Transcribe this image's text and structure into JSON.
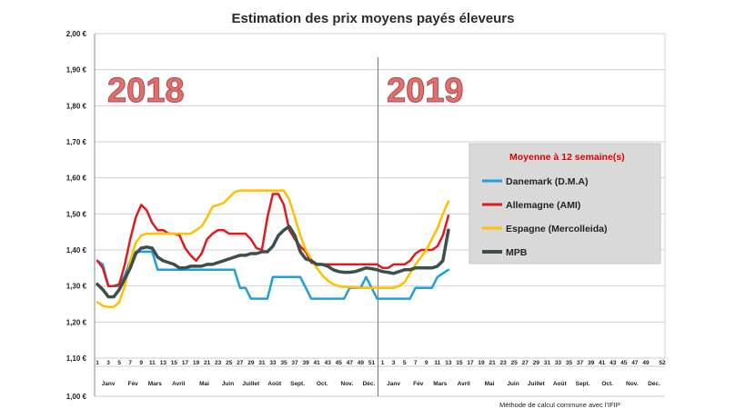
{
  "chart_data": {
    "type": "line",
    "title": "Estimation des prix moyens payés éleveurs",
    "y_tick_labels": [
      "2,00 €",
      "1,90 €",
      "1,80 €",
      "1,70 €",
      "1,60 €",
      "1,50 €",
      "1,40 €",
      "1,30 €",
      "1,20 €",
      "1,10 €",
      "1,00 €"
    ],
    "ylim": [
      1.0,
      2.0
    ],
    "grid": true,
    "week_ticks_2018": [
      "1",
      "3",
      "5",
      "7",
      "9",
      "11",
      "13",
      "15",
      "17",
      "19",
      "21",
      "23",
      "25",
      "27",
      "29",
      "31",
      "33",
      "35",
      "37",
      "39",
      "41",
      "43",
      "45",
      "47",
      "49",
      "51"
    ],
    "week_ticks_2019": [
      "1",
      "3",
      "5",
      "7",
      "9",
      "11",
      "13",
      "15",
      "17",
      "19",
      "21",
      "23",
      "25",
      "27",
      "29",
      "31",
      "33",
      "35",
      "37",
      "39",
      "41",
      "43",
      "45",
      "47",
      "49",
      "52"
    ],
    "months": [
      "Janv",
      "Fév",
      "Mars",
      "Avril",
      "Mai",
      "Juin",
      "Juillet",
      "Août",
      "Sept.",
      "Oct.",
      "Nov.",
      "Déc.",
      "Janv",
      "Fév",
      "Mars",
      "Avril",
      "Mai",
      "Juin",
      "Juillet",
      "Août",
      "Sept.",
      "Oct.",
      "Nov.",
      "Déc."
    ],
    "year_labels": [
      "2018",
      "2019"
    ],
    "legend": {
      "title": "Moyenne à  12 semaine(s)",
      "entries": [
        {
          "name": "Danemark (D.M.A)",
          "color": "#1f9fdc"
        },
        {
          "name": "Allemagne (AMI)",
          "color": "#e31a1c"
        },
        {
          "name": "Espagne (Mercolleida)",
          "color": "#ffc000"
        },
        {
          "name": "MPB",
          "color": "#3d4f4a"
        }
      ]
    },
    "note": "Méthode de calcul commune avec l'IFIP",
    "series": [
      {
        "name": "Danemark (D.M.A)",
        "color": "#1f9fdc",
        "x": [
          1,
          2,
          3,
          4,
          5,
          6,
          7,
          8,
          9,
          10,
          11,
          12,
          13,
          14,
          15,
          16,
          17,
          18,
          19,
          20,
          21,
          22,
          23,
          24,
          25,
          26,
          27,
          28,
          29,
          30,
          31,
          32,
          33,
          34,
          35,
          36,
          37,
          38,
          39,
          40,
          41,
          42,
          43,
          44,
          45,
          46,
          47,
          48,
          49,
          50,
          51,
          52,
          53,
          54,
          55,
          56,
          57,
          58,
          59,
          60,
          61,
          62,
          63,
          64,
          65
        ],
        "y": [
          1.37,
          1.36,
          1.3,
          1.3,
          1.3,
          1.33,
          1.37,
          1.395,
          1.395,
          1.395,
          1.395,
          1.345,
          1.345,
          1.345,
          1.345,
          1.345,
          1.345,
          1.345,
          1.345,
          1.345,
          1.345,
          1.345,
          1.345,
          1.345,
          1.345,
          1.345,
          1.295,
          1.295,
          1.265,
          1.265,
          1.265,
          1.265,
          1.325,
          1.325,
          1.325,
          1.325,
          1.325,
          1.325,
          1.295,
          1.265,
          1.265,
          1.265,
          1.265,
          1.265,
          1.265,
          1.265,
          1.295,
          1.295,
          1.295,
          1.325,
          1.295,
          1.265,
          1.265,
          1.265,
          1.265,
          1.265,
          1.265,
          1.265,
          1.295,
          1.295,
          1.295,
          1.295,
          1.325,
          1.335,
          1.345
        ]
      },
      {
        "name": "Allemagne (AMI)",
        "color": "#e31a1c",
        "x": [
          1,
          2,
          3,
          4,
          5,
          6,
          7,
          8,
          9,
          10,
          11,
          12,
          13,
          14,
          15,
          16,
          17,
          18,
          19,
          20,
          21,
          22,
          23,
          24,
          25,
          26,
          27,
          28,
          29,
          30,
          31,
          32,
          33,
          34,
          35,
          36,
          37,
          38,
          39,
          40,
          41,
          42,
          43,
          44,
          45,
          46,
          47,
          48,
          49,
          50,
          51,
          52,
          53,
          54,
          55,
          56,
          57,
          58,
          59,
          60,
          61,
          62,
          63,
          64,
          65
        ],
        "y": [
          1.37,
          1.35,
          1.3,
          1.3,
          1.305,
          1.36,
          1.43,
          1.49,
          1.525,
          1.51,
          1.475,
          1.455,
          1.455,
          1.445,
          1.445,
          1.44,
          1.405,
          1.385,
          1.37,
          1.39,
          1.43,
          1.445,
          1.455,
          1.455,
          1.445,
          1.445,
          1.445,
          1.445,
          1.43,
          1.405,
          1.4,
          1.49,
          1.555,
          1.555,
          1.525,
          1.455,
          1.43,
          1.41,
          1.395,
          1.365,
          1.36,
          1.36,
          1.36,
          1.36,
          1.36,
          1.36,
          1.36,
          1.36,
          1.36,
          1.36,
          1.36,
          1.36,
          1.35,
          1.35,
          1.36,
          1.36,
          1.36,
          1.37,
          1.39,
          1.4,
          1.4,
          1.4,
          1.41,
          1.44,
          1.495
        ]
      },
      {
        "name": "Espagne (Mercolleida)",
        "color": "#ffc000",
        "x": [
          1,
          2,
          3,
          4,
          5,
          6,
          7,
          8,
          9,
          10,
          11,
          12,
          13,
          14,
          15,
          16,
          17,
          18,
          19,
          20,
          21,
          22,
          23,
          24,
          25,
          26,
          27,
          28,
          29,
          30,
          31,
          32,
          33,
          34,
          35,
          36,
          37,
          38,
          39,
          40,
          41,
          42,
          43,
          44,
          45,
          46,
          47,
          48,
          49,
          50,
          51,
          52,
          53,
          54,
          55,
          56,
          57,
          58,
          59,
          60,
          61,
          62,
          63,
          64,
          65
        ],
        "y": [
          1.255,
          1.245,
          1.242,
          1.242,
          1.255,
          1.3,
          1.37,
          1.42,
          1.44,
          1.445,
          1.445,
          1.445,
          1.445,
          1.445,
          1.445,
          1.445,
          1.445,
          1.445,
          1.455,
          1.465,
          1.49,
          1.52,
          1.525,
          1.53,
          1.545,
          1.56,
          1.565,
          1.565,
          1.565,
          1.565,
          1.565,
          1.565,
          1.565,
          1.565,
          1.565,
          1.54,
          1.49,
          1.44,
          1.4,
          1.375,
          1.35,
          1.33,
          1.315,
          1.305,
          1.3,
          1.298,
          1.297,
          1.296,
          1.295,
          1.295,
          1.295,
          1.295,
          1.295,
          1.295,
          1.295,
          1.3,
          1.31,
          1.335,
          1.36,
          1.38,
          1.4,
          1.43,
          1.46,
          1.5,
          1.535
        ]
      },
      {
        "name": "MPB",
        "color": "#3d4f4a",
        "x": [
          1,
          2,
          3,
          4,
          5,
          6,
          7,
          8,
          9,
          10,
          11,
          12,
          13,
          14,
          15,
          16,
          17,
          18,
          19,
          20,
          21,
          22,
          23,
          24,
          25,
          26,
          27,
          28,
          29,
          30,
          31,
          32,
          33,
          34,
          35,
          36,
          37,
          38,
          39,
          40,
          41,
          42,
          43,
          44,
          45,
          46,
          47,
          48,
          49,
          50,
          51,
          52,
          53,
          54,
          55,
          56,
          57,
          58,
          59,
          60,
          61,
          62,
          63,
          64,
          65
        ],
        "y": [
          1.305,
          1.29,
          1.27,
          1.27,
          1.29,
          1.32,
          1.35,
          1.39,
          1.405,
          1.408,
          1.405,
          1.38,
          1.37,
          1.365,
          1.36,
          1.35,
          1.35,
          1.355,
          1.355,
          1.355,
          1.36,
          1.36,
          1.365,
          1.37,
          1.375,
          1.38,
          1.385,
          1.385,
          1.39,
          1.39,
          1.395,
          1.395,
          1.41,
          1.44,
          1.455,
          1.465,
          1.44,
          1.395,
          1.375,
          1.37,
          1.36,
          1.36,
          1.355,
          1.345,
          1.34,
          1.338,
          1.338,
          1.34,
          1.345,
          1.35,
          1.348,
          1.345,
          1.34,
          1.338,
          1.335,
          1.34,
          1.345,
          1.345,
          1.35,
          1.35,
          1.35,
          1.35,
          1.355,
          1.37,
          1.455
        ]
      }
    ]
  }
}
